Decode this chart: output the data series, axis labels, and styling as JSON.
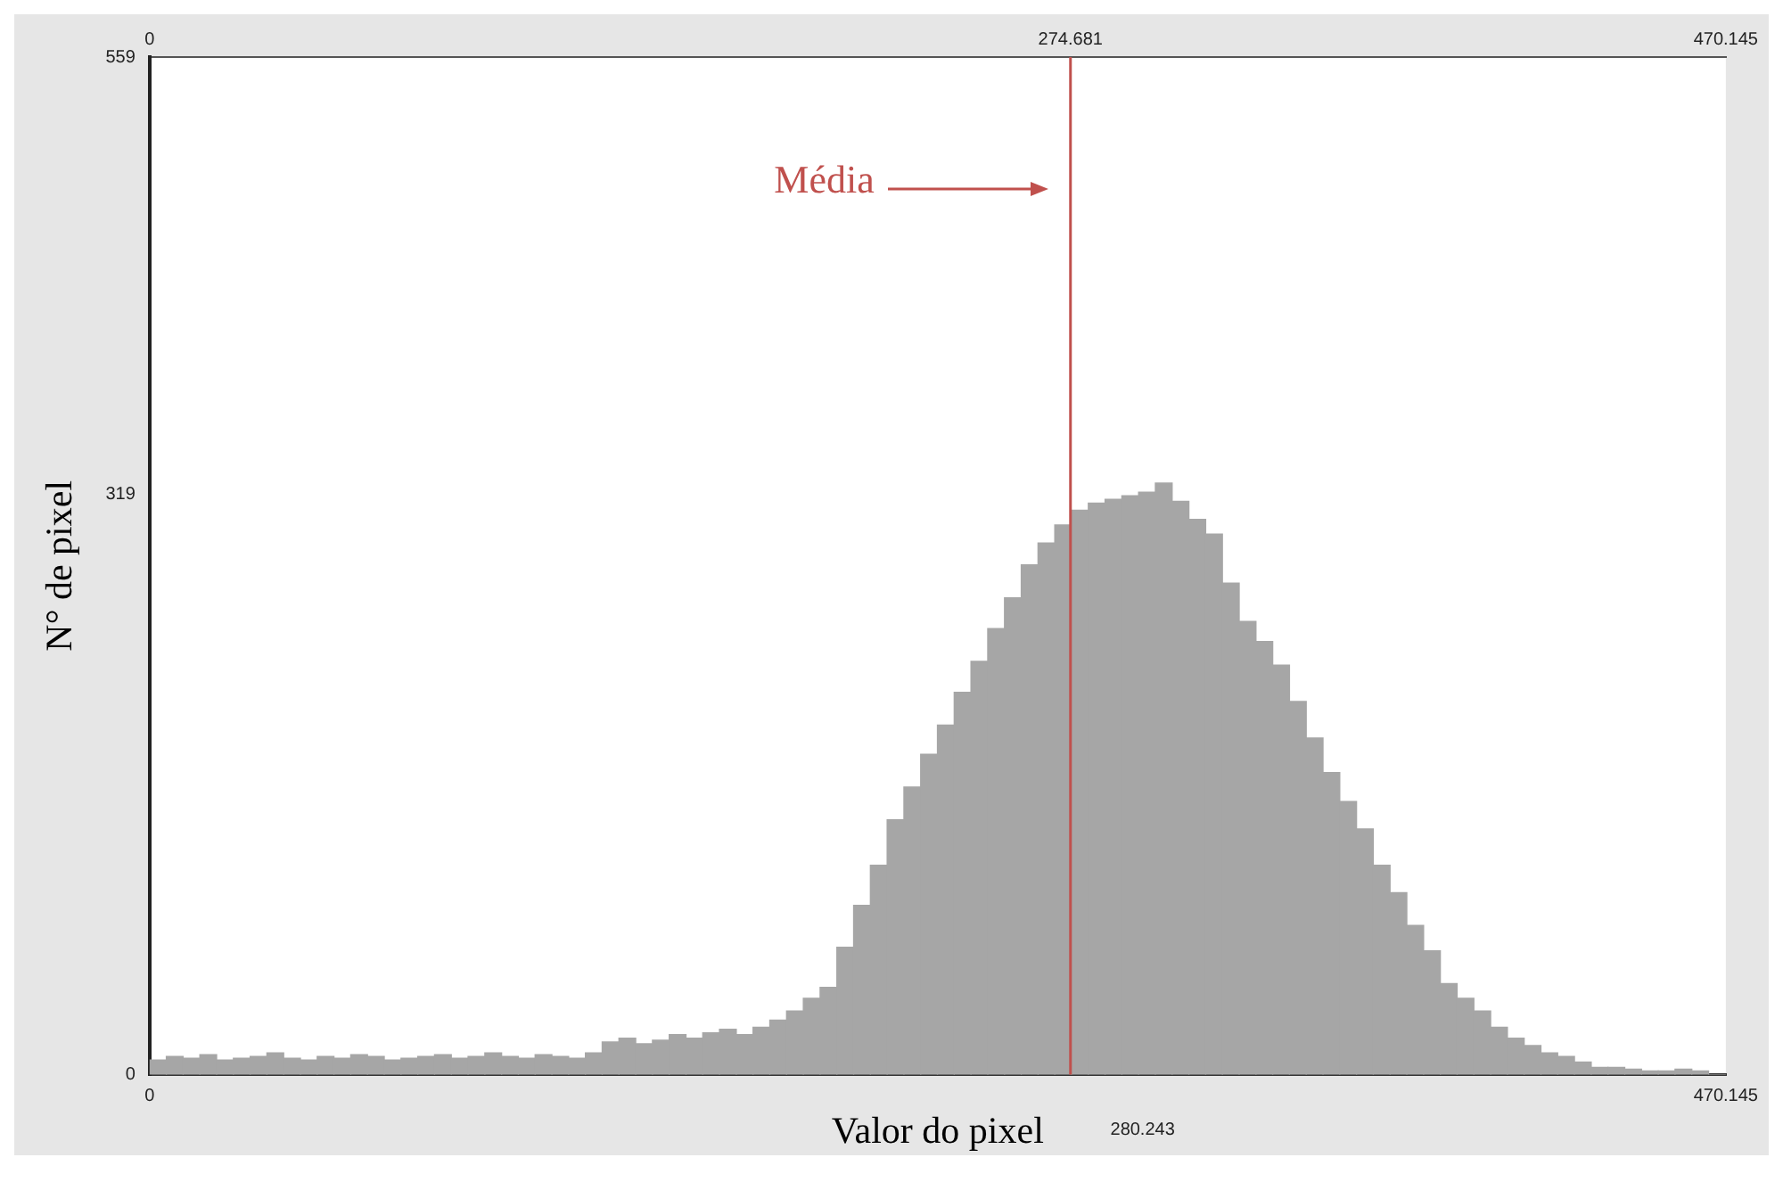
{
  "chart_data": {
    "type": "histogram",
    "xlabel": "Valor do pixel",
    "ylabel": "N° de pixel",
    "bins": [
      0,
      5,
      10,
      15,
      20,
      25,
      30,
      35,
      40,
      45,
      50,
      55,
      60,
      65,
      70,
      75,
      80,
      85,
      90,
      95,
      100,
      105,
      110,
      115,
      120,
      125,
      130,
      135,
      140,
      145,
      150,
      155,
      160,
      165,
      170,
      175,
      180,
      185,
      190,
      195,
      200,
      205,
      210,
      215,
      220,
      225,
      230,
      235,
      240,
      245,
      250,
      255,
      260,
      265,
      270,
      275,
      280,
      285,
      290,
      295,
      300,
      305,
      310,
      315,
      320,
      325,
      330,
      335,
      340,
      345,
      350,
      355,
      360,
      365,
      370,
      375,
      380,
      385,
      390,
      395,
      400,
      405,
      410,
      415,
      420,
      425,
      430,
      435,
      440,
      445,
      450,
      455,
      460,
      465,
      470.145
    ],
    "values": [
      8,
      10,
      9,
      11,
      8,
      9,
      10,
      12,
      9,
      8,
      10,
      9,
      11,
      10,
      8,
      9,
      10,
      11,
      9,
      10,
      12,
      10,
      9,
      11,
      10,
      9,
      12,
      18,
      20,
      17,
      19,
      22,
      20,
      23,
      25,
      22,
      26,
      30,
      35,
      42,
      48,
      70,
      93,
      115,
      140,
      158,
      176,
      192,
      210,
      227,
      245,
      262,
      280,
      292,
      302,
      310,
      314,
      316,
      318,
      320,
      325,
      315,
      305,
      297,
      270,
      249,
      238,
      225,
      205,
      185,
      166,
      150,
      135,
      115,
      100,
      82,
      68,
      50,
      42,
      35,
      26,
      20,
      16,
      12,
      10,
      7,
      4,
      4,
      3,
      2,
      2,
      3,
      2,
      0
    ],
    "color": "#a6a6a6",
    "xlim": [
      0,
      470.145
    ],
    "xticks": [
      0,
      470.145
    ],
    "x2lim": [
      0,
      470.145
    ],
    "x2ticks": [
      0,
      274.681,
      470.145
    ],
    "ylim": [
      0,
      559
    ],
    "yticks": [
      0,
      319,
      559
    ],
    "ref_lines": [
      {
        "axis": "x",
        "value": 274.681,
        "label": "Média",
        "color": "#c0504d"
      }
    ],
    "annotations": [
      "280.243"
    ]
  }
}
